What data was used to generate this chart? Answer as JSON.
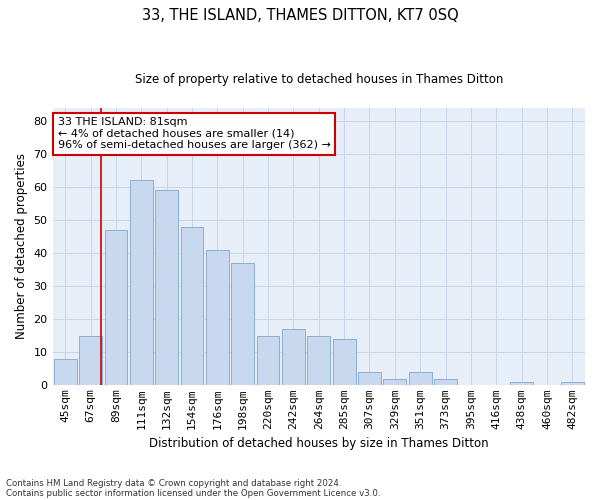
{
  "title": "33, THE ISLAND, THAMES DITTON, KT7 0SQ",
  "subtitle": "Size of property relative to detached houses in Thames Ditton",
  "xlabel": "Distribution of detached houses by size in Thames Ditton",
  "ylabel": "Number of detached properties",
  "categories": [
    "45sqm",
    "67sqm",
    "89sqm",
    "111sqm",
    "132sqm",
    "154sqm",
    "176sqm",
    "198sqm",
    "220sqm",
    "242sqm",
    "264sqm",
    "285sqm",
    "307sqm",
    "329sqm",
    "351sqm",
    "373sqm",
    "395sqm",
    "416sqm",
    "438sqm",
    "460sqm",
    "482sqm"
  ],
  "values": [
    8,
    15,
    47,
    62,
    59,
    48,
    41,
    37,
    15,
    17,
    15,
    14,
    4,
    2,
    4,
    2,
    0,
    0,
    1,
    0,
    1
  ],
  "bar_color": "#c8d9ef",
  "bar_edge_color": "#89afd4",
  "grid_color": "#c8d4e8",
  "background_color": "#e8eef8",
  "vline_color": "#cc0000",
  "vline_x": 1.42,
  "annotation_text": "33 THE ISLAND: 81sqm\n← 4% of detached houses are smaller (14)\n96% of semi-detached houses are larger (362) →",
  "annotation_box_color": "#ffffff",
  "annotation_box_edge": "#cc0000",
  "ylim": [
    0,
    84
  ],
  "yticks": [
    0,
    10,
    20,
    30,
    40,
    50,
    60,
    70,
    80
  ],
  "title_fontsize": 10.5,
  "subtitle_fontsize": 8.5,
  "xlabel_fontsize": 8.5,
  "ylabel_fontsize": 8.5,
  "tick_fontsize": 8,
  "footer1": "Contains HM Land Registry data © Crown copyright and database right 2024.",
  "footer2": "Contains public sector information licensed under the Open Government Licence v3.0."
}
